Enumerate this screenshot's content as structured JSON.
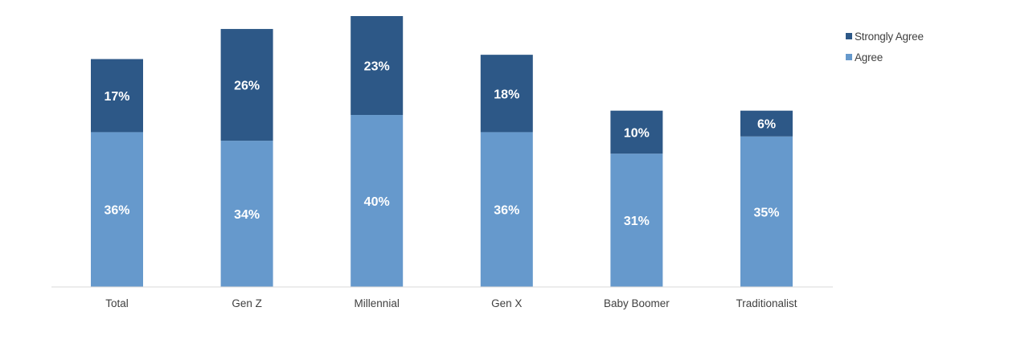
{
  "chart_data": {
    "type": "bar",
    "stacked": true,
    "categories": [
      "Total",
      "Gen Z",
      "Millennial",
      "Gen X",
      "Baby Boomer",
      "Traditionalist"
    ],
    "series": [
      {
        "name": "Agree",
        "values": [
          36,
          34,
          40,
          36,
          31,
          35
        ],
        "labels": [
          "36%",
          "34%",
          "40%",
          "36%",
          "31%",
          "35%"
        ],
        "color": "#6699cc"
      },
      {
        "name": "Strongly Agree",
        "values": [
          17,
          26,
          23,
          18,
          10,
          6
        ],
        "labels": [
          "17%",
          "26%",
          "23%",
          "18%",
          "10%",
          "6%"
        ],
        "color": "#2d5887"
      }
    ],
    "ylim": [
      0,
      63
    ],
    "grid": false,
    "legend_position": "top-right",
    "baseline_color": "#d9d9d9"
  },
  "legend": {
    "items": [
      {
        "label": "Strongly Agree",
        "color": "#2d5887"
      },
      {
        "label": "Agree",
        "color": "#6699cc"
      }
    ]
  }
}
